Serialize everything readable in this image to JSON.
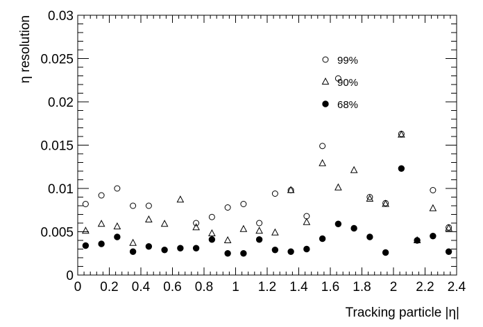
{
  "chart_data": {
    "type": "scatter",
    "xlabel": "Tracking particle |η|",
    "ylabel": "η resolution",
    "xlim": [
      0,
      2.4
    ],
    "ylim": [
      0,
      0.03
    ],
    "x_ticks": [
      "0",
      "0.2",
      "0.4",
      "0.6",
      "0.8",
      "1",
      "1.2",
      "1.4",
      "1.6",
      "1.8",
      "2",
      "2.2",
      "2.4"
    ],
    "y_ticks": [
      "0",
      "0.005",
      "0.01",
      "0.015",
      "0.02",
      "0.025",
      "0.03"
    ],
    "x": [
      0.05,
      0.15,
      0.25,
      0.35,
      0.45,
      0.55,
      0.65,
      0.75,
      0.85,
      0.95,
      1.05,
      1.15,
      1.25,
      1.35,
      1.45,
      1.55,
      1.65,
      1.75,
      1.85,
      1.95,
      2.05,
      2.15,
      2.25,
      2.35
    ],
    "series": [
      {
        "name": "99%",
        "marker": "open-circle",
        "values": [
          0.0082,
          0.0092,
          0.01,
          0.008,
          0.008,
          null,
          null,
          0.006,
          0.0067,
          0.0078,
          0.0082,
          0.006,
          0.0094,
          0.0098,
          0.0068,
          0.0149,
          0.0227,
          null,
          0.009,
          0.0083,
          0.0163,
          0.004,
          0.0098,
          0.0055
        ]
      },
      {
        "name": "90%",
        "marker": "open-triangle",
        "values": [
          0.0051,
          0.0059,
          0.0056,
          0.0037,
          0.0064,
          0.0059,
          0.0087,
          0.0055,
          0.0048,
          0.004,
          0.0053,
          0.0051,
          0.0049,
          0.0098,
          0.0061,
          0.0129,
          0.0101,
          0.0121,
          0.0088,
          0.0082,
          0.0162,
          0.004,
          0.0077,
          0.0054
        ]
      },
      {
        "name": "68%",
        "marker": "filled-circle",
        "values": [
          0.0034,
          0.0036,
          0.0044,
          0.0027,
          0.0033,
          0.0029,
          0.0031,
          0.0031,
          0.0041,
          0.0025,
          0.0025,
          0.0041,
          0.0029,
          0.0027,
          0.003,
          0.0042,
          0.0059,
          0.0054,
          0.0044,
          0.0026,
          0.0123,
          0.004,
          0.0045,
          0.0027
        ]
      }
    ],
    "legend_placement": "upper-right",
    "grid": false
  },
  "colors": {
    "marker": "#000000",
    "frame": "#000000",
    "background": "#ffffff"
  }
}
